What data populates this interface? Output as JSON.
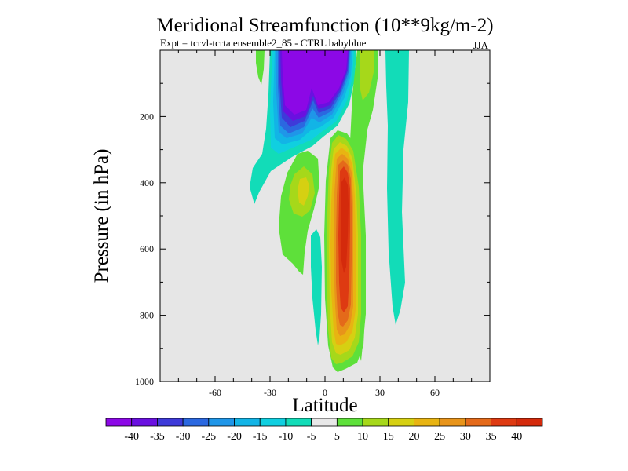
{
  "chart_data": {
    "type": "heatmap",
    "title": "Meridional Streamfunction (10**9kg/m-2)",
    "subtitle": "Expt = tcrvl-tcrta  ensemble2_85 - CTRL babyblue",
    "season": "JJA",
    "xlabel": "Latitude",
    "ylabel": "Pressure (in hPa)",
    "xlim": [
      -90,
      90
    ],
    "ylim": [
      0,
      1000
    ],
    "y_inverted": true,
    "x_ticks": [
      -60,
      -30,
      0,
      30,
      60
    ],
    "x_tick_labels": [
      "-60",
      "-30",
      "0",
      "30",
      "60"
    ],
    "y_ticks": [
      200,
      400,
      600,
      800,
      1000
    ],
    "y_tick_labels": [
      "200",
      "400",
      "600",
      "800",
      "1000"
    ],
    "missing_color": "#e6e6e6",
    "colorbar": {
      "levels": [
        -40,
        -35,
        -30,
        -25,
        -20,
        -15,
        -10,
        -5,
        5,
        10,
        15,
        20,
        25,
        30,
        35,
        40
      ],
      "labels": [
        "-40",
        "-35",
        "-30",
        "-25",
        "-20",
        "-15",
        "-10",
        "-5",
        "5",
        "10",
        "15",
        "20",
        "25",
        "30",
        "35",
        "40"
      ],
      "colors": [
        "#8c08e6",
        "#6a10e0",
        "#3e3ad9",
        "#2b68e0",
        "#1f96e8",
        "#12b4e6",
        "#10cfe0",
        "#12dcb8",
        "#e8e8e8",
        "#5ee03a",
        "#a6d81a",
        "#d6d012",
        "#e8b412",
        "#e8941a",
        "#e46a1a",
        "#de3a12",
        "#d42a0c"
      ]
    },
    "features": [
      {
        "name": "negative cell upper troposphere",
        "x_range": [
          -30,
          15
        ],
        "p_range": [
          0,
          330
        ],
        "min_value": -40,
        "polarity": "negative"
      },
      {
        "name": "positive cell",
        "x_range": [
          -5,
          20
        ],
        "p_range": [
          280,
          980
        ],
        "max_value": 40,
        "polarity": "positive"
      },
      {
        "name": "secondary positive cell",
        "x_range": [
          -25,
          -3
        ],
        "p_range": [
          290,
          680
        ],
        "max_value": 20,
        "polarity": "positive"
      },
      {
        "name": "narrow positive band",
        "x_range": [
          20,
          30
        ],
        "p_range": [
          0,
          1000
        ],
        "max_value": 15,
        "polarity": "positive"
      },
      {
        "name": "weak negative band",
        "x_range": [
          32,
          45
        ],
        "p_range": [
          0,
          840
        ],
        "min_value": -10,
        "polarity": "negative"
      }
    ]
  }
}
